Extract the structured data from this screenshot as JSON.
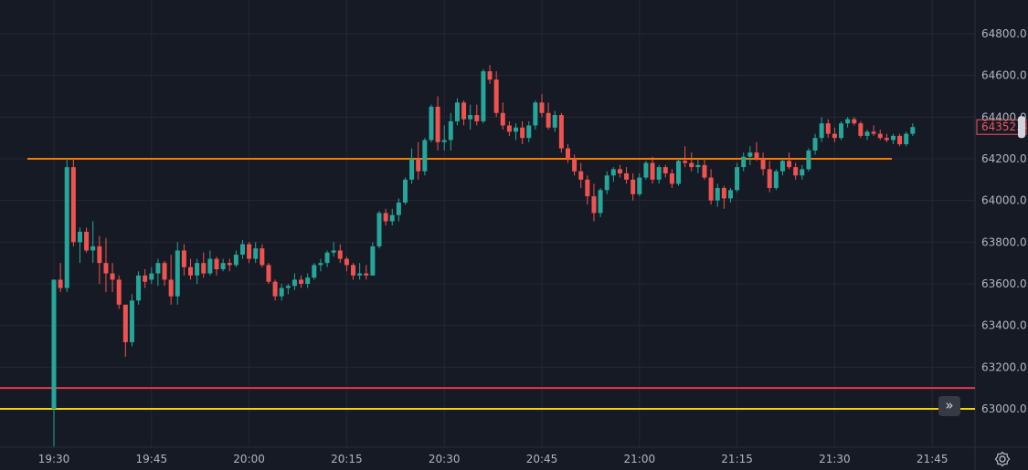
{
  "colors": {
    "background": "#161a25",
    "grid": "#242833",
    "up": "#26a69a",
    "down": "#ef5350",
    "text": "#b2b5be",
    "hline_orange": "#f57c00",
    "hline_red": "#e53950",
    "hline_yellow": "#f5d400",
    "price_tag": "#f0545f"
  },
  "controls": {
    "scroll_to_realtime_icon": "double-chevron-right-icon",
    "settings_icon": "gear-icon"
  },
  "chart_data": {
    "type": "candlestick",
    "interval_minutes": 1,
    "y_axis": {
      "range": [
        62820,
        64900
      ],
      "ticks": [
        "63000.0",
        "63200.0",
        "63400.0",
        "63600.0",
        "63800.0",
        "64000.0",
        "64200.0",
        "64400.0",
        "64600.0",
        "64800.0"
      ],
      "grid": true,
      "position": "right"
    },
    "x_axis": {
      "ticks": [
        "19:30",
        "19:45",
        "20:00",
        "20:15",
        "20:30",
        "20:45",
        "21:00",
        "21:15",
        "21:30",
        "21:45"
      ],
      "grid": true
    },
    "last_price": "64352.3",
    "horizontal_lines": [
      {
        "price": 64200,
        "color": "orange",
        "extent": "partial"
      },
      {
        "price": 63100,
        "color": "red",
        "extent": "full"
      },
      {
        "price": 63000,
        "color": "yellow",
        "extent": "full"
      }
    ],
    "candles": [
      [
        63000,
        63620,
        62820,
        63620
      ],
      [
        63620,
        63700,
        63560,
        63580
      ],
      [
        63580,
        64200,
        63560,
        64160
      ],
      [
        64160,
        64200,
        63780,
        63800
      ],
      [
        63800,
        63870,
        63700,
        63850
      ],
      [
        63850,
        63870,
        63750,
        63760
      ],
      [
        63760,
        63900,
        63700,
        63780
      ],
      [
        63780,
        63830,
        63600,
        63700
      ],
      [
        63700,
        63820,
        63560,
        63650
      ],
      [
        63650,
        63700,
        63560,
        63620
      ],
      [
        63620,
        63640,
        63480,
        63500
      ],
      [
        63500,
        63500,
        63250,
        63320
      ],
      [
        63320,
        63550,
        63300,
        63520
      ],
      [
        63520,
        63660,
        63500,
        63640
      ],
      [
        63640,
        63670,
        63580,
        63610
      ],
      [
        63620,
        63680,
        63600,
        63650
      ],
      [
        63650,
        63720,
        63590,
        63700
      ],
      [
        63700,
        63710,
        63590,
        63620
      ],
      [
        63620,
        63740,
        63500,
        63540
      ],
      [
        63540,
        63800,
        63500,
        63760
      ],
      [
        63760,
        63790,
        63640,
        63680
      ],
      [
        63680,
        63720,
        63620,
        63640
      ],
      [
        63640,
        63720,
        63600,
        63700
      ],
      [
        63700,
        63750,
        63630,
        63650
      ],
      [
        63650,
        63760,
        63640,
        63720
      ],
      [
        63720,
        63730,
        63640,
        63670
      ],
      [
        63670,
        63720,
        63660,
        63700
      ],
      [
        63700,
        63720,
        63660,
        63690
      ],
      [
        63690,
        63760,
        63680,
        63740
      ],
      [
        63740,
        63810,
        63720,
        63790
      ],
      [
        63790,
        63800,
        63700,
        63720
      ],
      [
        63720,
        63800,
        63700,
        63770
      ],
      [
        63770,
        63790,
        63680,
        63690
      ],
      [
        63690,
        63700,
        63600,
        63610
      ],
      [
        63610,
        63620,
        63520,
        63540
      ],
      [
        63540,
        63600,
        63520,
        63580
      ],
      [
        63580,
        63600,
        63550,
        63590
      ],
      [
        63590,
        63650,
        63570,
        63620
      ],
      [
        63620,
        63640,
        63580,
        63600
      ],
      [
        63600,
        63650,
        63580,
        63630
      ],
      [
        63630,
        63700,
        63620,
        63690
      ],
      [
        63690,
        63720,
        63660,
        63700
      ],
      [
        63700,
        63760,
        63680,
        63750
      ],
      [
        63750,
        63800,
        63730,
        63760
      ],
      [
        63760,
        63790,
        63700,
        63720
      ],
      [
        63720,
        63730,
        63660,
        63690
      ],
      [
        63690,
        63700,
        63620,
        63640
      ],
      [
        63640,
        63700,
        63620,
        63650
      ],
      [
        63650,
        63690,
        63620,
        63640
      ],
      [
        63640,
        63800,
        63640,
        63780
      ],
      [
        63780,
        63950,
        63770,
        63940
      ],
      [
        63940,
        63960,
        63880,
        63900
      ],
      [
        63900,
        63960,
        63880,
        63930
      ],
      [
        63930,
        64010,
        63900,
        63990
      ],
      [
        63990,
        64110,
        63980,
        64100
      ],
      [
        64100,
        64250,
        64080,
        64200
      ],
      [
        64200,
        64280,
        64100,
        64140
      ],
      [
        64140,
        64300,
        64120,
        64290
      ],
      [
        64290,
        64460,
        64280,
        64450
      ],
      [
        64450,
        64500,
        64240,
        64280
      ],
      [
        64280,
        64360,
        64240,
        64290
      ],
      [
        64290,
        64420,
        64240,
        64380
      ],
      [
        64380,
        64490,
        64360,
        64470
      ],
      [
        64470,
        64480,
        64360,
        64390
      ],
      [
        64390,
        64460,
        64340,
        64410
      ],
      [
        64410,
        64460,
        64360,
        64380
      ],
      [
        64380,
        64630,
        64370,
        64620
      ],
      [
        64620,
        64650,
        64560,
        64580
      ],
      [
        64580,
        64620,
        64400,
        64420
      ],
      [
        64420,
        64470,
        64340,
        64360
      ],
      [
        64360,
        64380,
        64310,
        64330
      ],
      [
        64330,
        64370,
        64290,
        64350
      ],
      [
        64350,
        64380,
        64270,
        64300
      ],
      [
        64300,
        64380,
        64280,
        64360
      ],
      [
        64360,
        64480,
        64340,
        64470
      ],
      [
        64470,
        64510,
        64400,
        64420
      ],
      [
        64420,
        64470,
        64340,
        64350
      ],
      [
        64350,
        64430,
        64330,
        64410
      ],
      [
        64410,
        64420,
        64230,
        64250
      ],
      [
        64250,
        64270,
        64180,
        64200
      ],
      [
        64200,
        64220,
        64120,
        64140
      ],
      [
        64140,
        64180,
        64060,
        64100
      ],
      [
        64100,
        64120,
        63980,
        64020
      ],
      [
        64020,
        64080,
        63900,
        63940
      ],
      [
        63940,
        64060,
        63920,
        64050
      ],
      [
        64050,
        64140,
        64030,
        64120
      ],
      [
        64120,
        64160,
        64090,
        64150
      ],
      [
        64150,
        64170,
        64110,
        64130
      ],
      [
        64130,
        64160,
        64080,
        64100
      ],
      [
        64100,
        64130,
        64000,
        64030
      ],
      [
        64030,
        64130,
        64020,
        64110
      ],
      [
        64110,
        64190,
        64100,
        64180
      ],
      [
        64180,
        64210,
        64080,
        64100
      ],
      [
        64100,
        64170,
        64080,
        64160
      ],
      [
        64160,
        64170,
        64110,
        64130
      ],
      [
        64130,
        64150,
        64060,
        64080
      ],
      [
        64080,
        64200,
        64070,
        64190
      ],
      [
        64190,
        64260,
        64160,
        64180
      ],
      [
        64180,
        64230,
        64140,
        64160
      ],
      [
        64160,
        64200,
        64130,
        64170
      ],
      [
        64170,
        64200,
        64100,
        64110
      ],
      [
        64110,
        64150,
        63980,
        64000
      ],
      [
        64000,
        64080,
        63970,
        64060
      ],
      [
        64060,
        64070,
        63960,
        64010
      ],
      [
        64010,
        64060,
        63990,
        64050
      ],
      [
        64050,
        64180,
        64040,
        64160
      ],
      [
        64160,
        64230,
        64140,
        64210
      ],
      [
        64210,
        64260,
        64170,
        64230
      ],
      [
        64230,
        64280,
        64190,
        64200
      ],
      [
        64200,
        64230,
        64120,
        64150
      ],
      [
        64150,
        64190,
        64040,
        64060
      ],
      [
        64060,
        64150,
        64050,
        64140
      ],
      [
        64140,
        64200,
        64120,
        64190
      ],
      [
        64190,
        64230,
        64150,
        64160
      ],
      [
        64160,
        64180,
        64100,
        64120
      ],
      [
        64120,
        64170,
        64100,
        64150
      ],
      [
        64150,
        64250,
        64140,
        64240
      ],
      [
        64240,
        64320,
        64220,
        64300
      ],
      [
        64300,
        64400,
        64280,
        64370
      ],
      [
        64370,
        64390,
        64300,
        64320
      ],
      [
        64320,
        64350,
        64280,
        64300
      ],
      [
        64300,
        64380,
        64290,
        64370
      ],
      [
        64370,
        64400,
        64350,
        64390
      ],
      [
        64390,
        64400,
        64360,
        64370
      ],
      [
        64370,
        64380,
        64300,
        64310
      ],
      [
        64310,
        64340,
        64290,
        64330
      ],
      [
        64330,
        64360,
        64310,
        64320
      ],
      [
        64320,
        64340,
        64290,
        64300
      ],
      [
        64300,
        64320,
        64280,
        64290
      ],
      [
        64290,
        64320,
        64270,
        64310
      ],
      [
        64310,
        64320,
        64260,
        64270
      ],
      [
        64270,
        64330,
        64260,
        64320
      ],
      [
        64320,
        64370,
        64310,
        64352.3
      ]
    ]
  }
}
